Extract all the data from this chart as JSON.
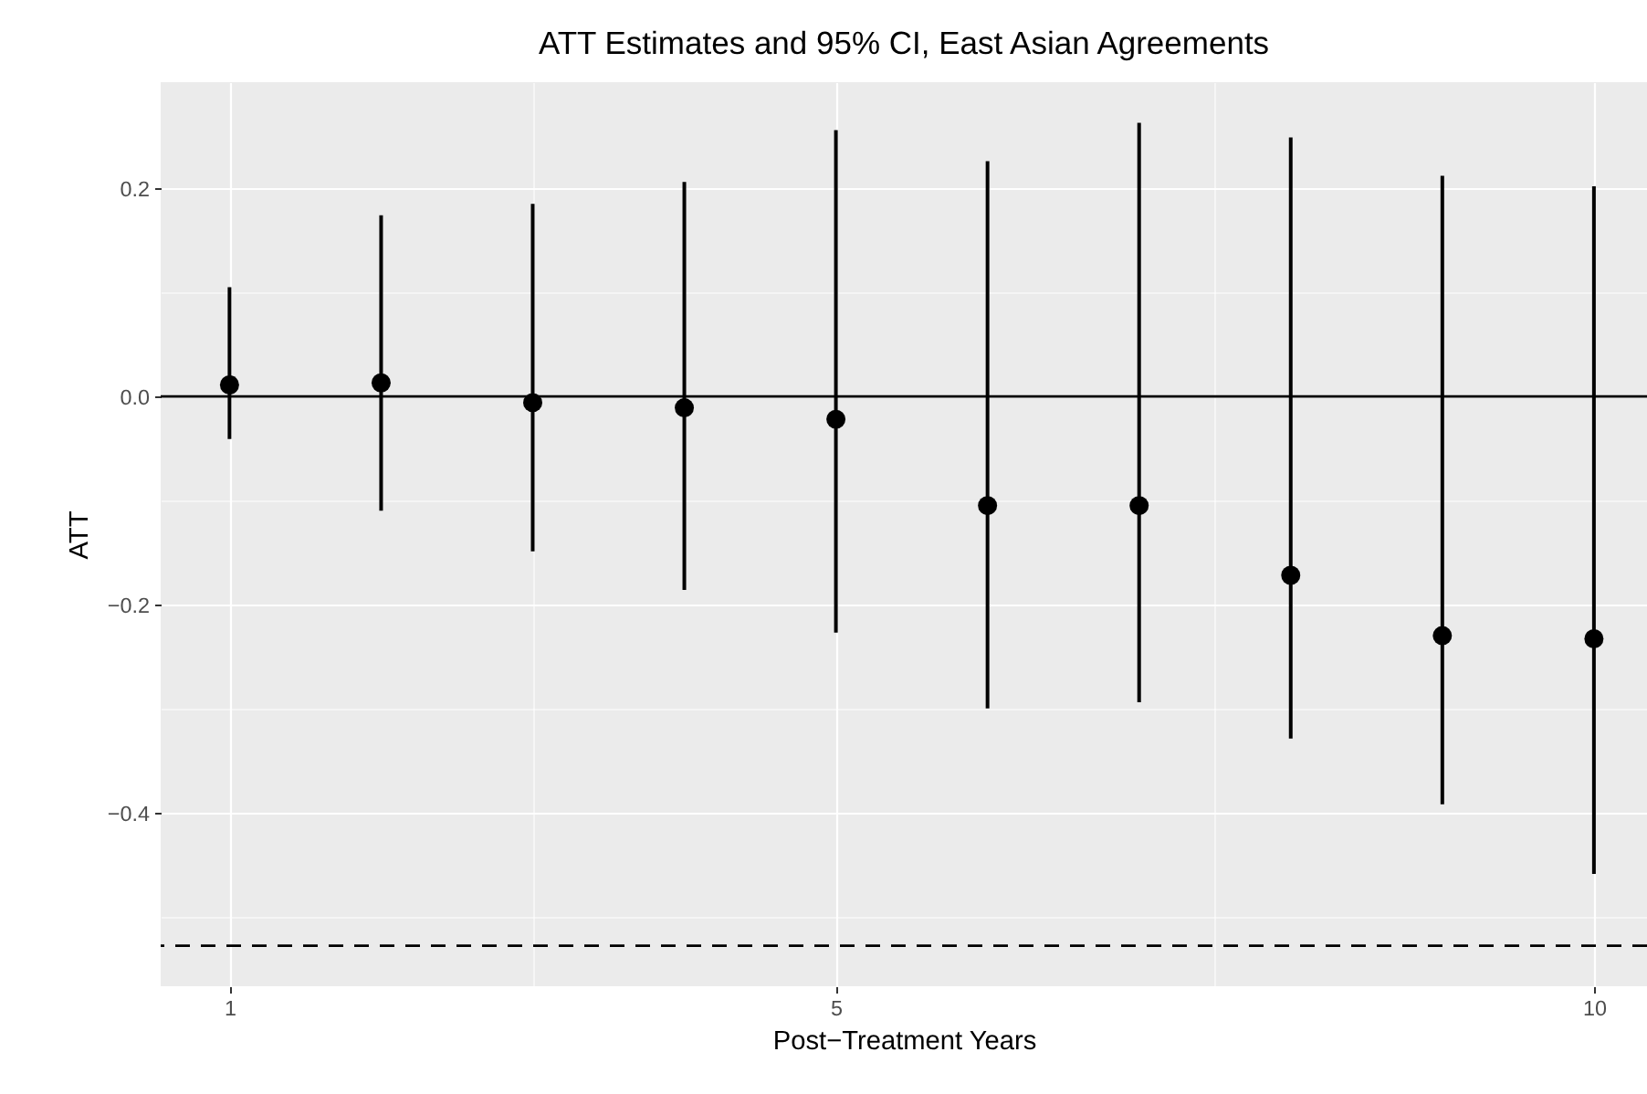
{
  "chart_data": {
    "type": "scatter",
    "title": "ATT Estimates and 95% CI, East Asian Agreements",
    "xlabel": "Post−Treatment Years",
    "ylabel": "ATT",
    "x": [
      1,
      2,
      3,
      4,
      5,
      6,
      7,
      8,
      9,
      10
    ],
    "series": [
      {
        "color": "#000000",
        "values": [
          0.011,
          0.013,
          -0.006,
          -0.011,
          -0.022,
          -0.105,
          -0.105,
          -0.172,
          -0.23,
          -0.233
        ],
        "errors": [
          [
            -0.041,
            0.105
          ],
          [
            -0.11,
            0.174
          ],
          [
            -0.149,
            0.185
          ],
          [
            -0.186,
            0.206
          ],
          [
            -0.227,
            0.256
          ],
          [
            -0.3,
            0.226
          ],
          [
            -0.294,
            0.263
          ],
          [
            -0.329,
            0.249
          ],
          [
            -0.392,
            0.212
          ],
          [
            -0.459,
            0.202
          ]
        ]
      }
    ],
    "marker": "circle",
    "grid": true,
    "xlim": [
      0.546,
      10.35
    ],
    "ylim": [
      -0.567,
      0.302
    ],
    "xticks": [
      1,
      {
        "value": 3,
        "label": null
      },
      5,
      {
        "value": 7.5,
        "label": null
      },
      10
    ],
    "yticks": [
      {
        "value": -0.5,
        "label": null
      },
      {
        "value": -0.4,
        "label": "−0.4"
      },
      {
        "value": -0.3,
        "label": null
      },
      {
        "value": -0.2,
        "label": "−0.2"
      },
      {
        "value": -0.1,
        "label": null
      },
      {
        "value": 0,
        "label": "0.0"
      },
      {
        "value": 0.1,
        "label": null
      },
      0.2
    ],
    "ref_lines": [
      {
        "axis": "y",
        "value": 0,
        "line_style": "solid",
        "color": "#000000"
      },
      {
        "axis": "y",
        "value": -0.528,
        "line_style": "dashed",
        "color": "#000000"
      }
    ]
  }
}
